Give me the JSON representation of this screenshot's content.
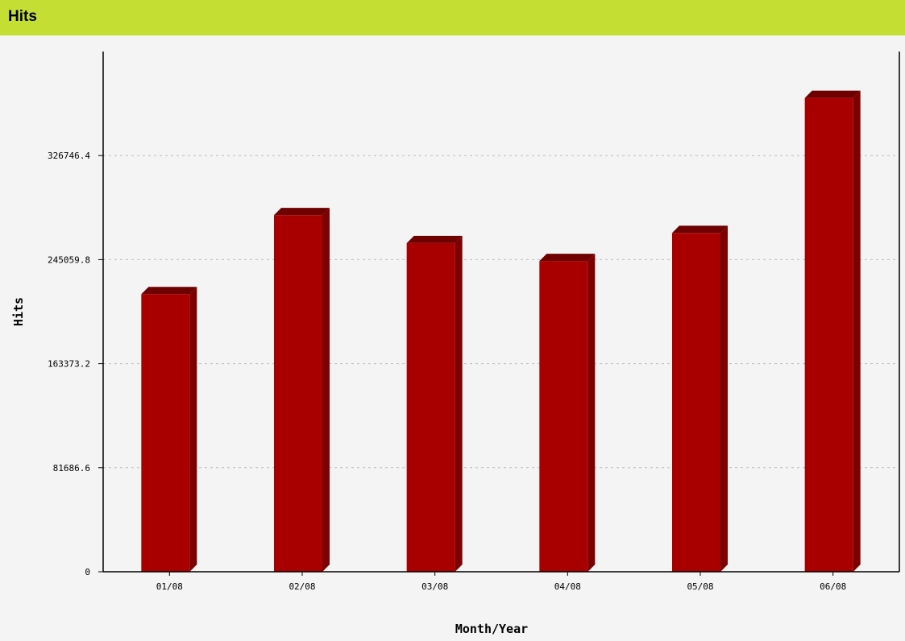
{
  "header": {
    "title": "Hits"
  },
  "colors": {
    "header_bg": "#c5de33",
    "bar_front": "#a80000",
    "bar_side": "#7c0000",
    "bar_top": "#6e0000",
    "grid": "#bbbbbb",
    "background": "#f4f4f4"
  },
  "chart_data": {
    "type": "bar",
    "categories": [
      "01/08",
      "02/08",
      "03/08",
      "04/08",
      "05/08",
      "06/08"
    ],
    "values": [
      218000,
      280000,
      258000,
      244000,
      266000,
      372000
    ],
    "xlabel": "Month/Year",
    "ylabel": "Hits",
    "yticks": [
      "0",
      "81686.6",
      "163373.2",
      "245059.8",
      "326746.4"
    ],
    "ytick_values": [
      0,
      81686.6,
      163373.2,
      245059.8,
      326746.4
    ],
    "ylim": [
      0,
      408433
    ],
    "grid": true,
    "style": "3d-bar"
  }
}
